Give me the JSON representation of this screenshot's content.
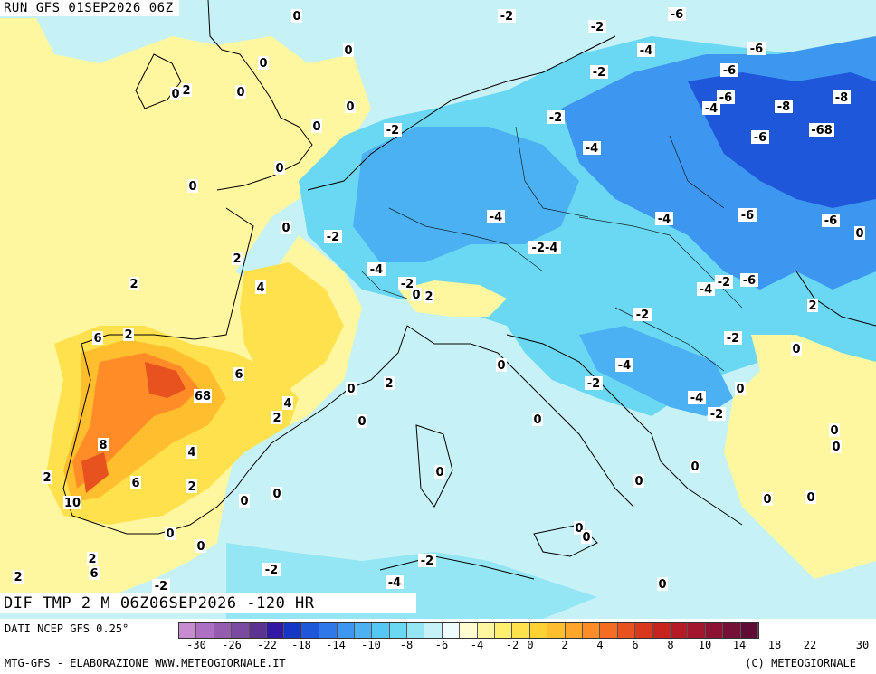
{
  "header": {
    "run": "RUN GFS 01SEP2026 06Z",
    "title": "DIF TMP 2 M 06Z06SEP2026 -120 HR"
  },
  "footer": {
    "source": "DATI NCEP GFS 0.25°",
    "credit_left": "MTG-GFS - ELABORAZIONE WWW.METEOGIORNALE.IT",
    "credit_right": "(C) METEOGIORNALE"
  },
  "legend": {
    "colors": [
      "#c78bd0",
      "#ad6fc1",
      "#945db0",
      "#7b4aa1",
      "#5c3391",
      "#3318a5",
      "#1538c4",
      "#1f57db",
      "#2f78e9",
      "#3d97f1",
      "#4cb1f3",
      "#56c6f2",
      "#6ad8f3",
      "#94e6f4",
      "#c6f2f7",
      "#eefcfc",
      "#fffcd2",
      "#fff7a0",
      "#ffef6e",
      "#ffe14e",
      "#ffd234",
      "#ffbe2e",
      "#ffa62a",
      "#ff8c26",
      "#f56d22",
      "#e8521e",
      "#d9381c",
      "#c7241e",
      "#b51a25",
      "#a2172d",
      "#8d1332",
      "#771037",
      "#5f0d37"
    ],
    "ticks": [
      "-30",
      "-26",
      "-22",
      "-18",
      "-14",
      "-10",
      "-8",
      "-6",
      "-4",
      "-2",
      "0",
      "2",
      "4",
      "6",
      "8",
      "10",
      "14",
      "18",
      "22",
      "30"
    ]
  },
  "map_labels": [
    {
      "text": "0"
    },
    {
      "text": "0"
    },
    {
      "text": "0"
    },
    {
      "text": "0"
    },
    {
      "text": "2"
    },
    {
      "text": "0"
    },
    {
      "text": "0"
    },
    {
      "text": "0"
    },
    {
      "text": "0"
    },
    {
      "text": "0"
    },
    {
      "text": "0"
    },
    {
      "text": "-2"
    },
    {
      "text": "-2"
    },
    {
      "text": "-2"
    },
    {
      "text": "-6"
    },
    {
      "text": "-4"
    },
    {
      "text": "-6"
    },
    {
      "text": "-6"
    },
    {
      "text": "-6"
    },
    {
      "text": "-4"
    },
    {
      "text": "-8"
    },
    {
      "text": "-8"
    },
    {
      "text": "-2"
    },
    {
      "text": "-6"
    },
    {
      "text": "-68"
    },
    {
      "text": "-2"
    },
    {
      "text": "-4"
    },
    {
      "text": "-4"
    },
    {
      "text": "-4"
    },
    {
      "text": "-6"
    },
    {
      "text": "-6"
    },
    {
      "text": "0"
    },
    {
      "text": "-2"
    },
    {
      "text": "-2-4"
    },
    {
      "text": "-4"
    },
    {
      "text": "-2"
    },
    {
      "text": "-4"
    },
    {
      "text": "-6"
    },
    {
      "text": "-2"
    },
    {
      "text": "0"
    },
    {
      "text": "2"
    },
    {
      "text": "-2"
    },
    {
      "text": "-2"
    },
    {
      "text": "2"
    },
    {
      "text": "-4"
    },
    {
      "text": "-2"
    },
    {
      "text": "0"
    },
    {
      "text": "-4"
    },
    {
      "text": "-2"
    },
    {
      "text": "0"
    },
    {
      "text": "0"
    },
    {
      "text": "0"
    },
    {
      "text": "0"
    },
    {
      "text": "0"
    },
    {
      "text": "0"
    },
    {
      "text": "0"
    },
    {
      "text": "2"
    },
    {
      "text": "2"
    },
    {
      "text": "4"
    },
    {
      "text": "6"
    },
    {
      "text": "2"
    },
    {
      "text": "6"
    },
    {
      "text": "68"
    },
    {
      "text": "4"
    },
    {
      "text": "2"
    },
    {
      "text": "0"
    },
    {
      "text": "2"
    },
    {
      "text": "8"
    },
    {
      "text": "4"
    },
    {
      "text": "2"
    },
    {
      "text": "6"
    },
    {
      "text": "2"
    },
    {
      "text": "10"
    },
    {
      "text": "0"
    },
    {
      "text": "0"
    },
    {
      "text": "0"
    },
    {
      "text": "0"
    },
    {
      "text": "0"
    },
    {
      "text": "0"
    },
    {
      "text": "0"
    },
    {
      "text": "0"
    },
    {
      "text": "0"
    },
    {
      "text": "0"
    },
    {
      "text": "-2"
    },
    {
      "text": "-2"
    },
    {
      "text": "-4"
    },
    {
      "text": "2"
    },
    {
      "text": "6"
    },
    {
      "text": "2"
    },
    {
      "text": "-2"
    },
    {
      "text": "0"
    }
  ]
}
